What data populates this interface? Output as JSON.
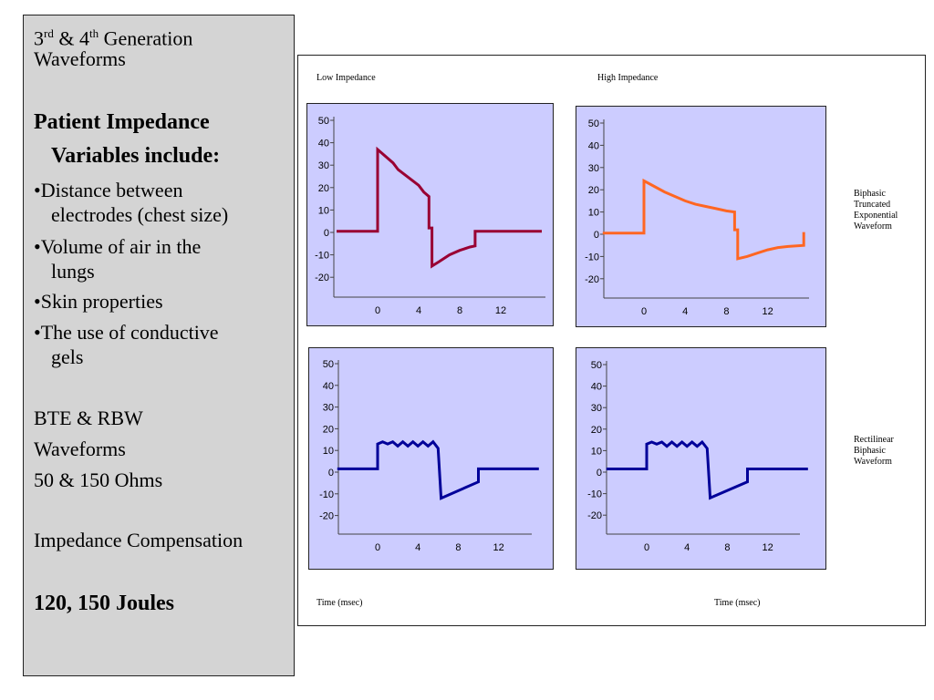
{
  "sidebar": {
    "title": {
      "l1_a": "3",
      "l1_sup1": "rd",
      "l1_b": " & 4",
      "l1_sup2": "th",
      "l1_c": " Generation",
      "l2": "Waveforms"
    },
    "heading": {
      "l1": "Patient Impedance",
      "l2": "Variables include:"
    },
    "bullets": [
      {
        "l1": "•Distance between",
        "l2": "electrodes (chest size)"
      },
      {
        "l1": "•Volume of air in the",
        "l2": "lungs"
      },
      {
        "l1": "•Skin properties",
        "l2": ""
      },
      {
        "l1": "•The use of conductive",
        "l2": "gels"
      }
    ],
    "bte": {
      "l1": "BTE & RBW",
      "l2": "Waveforms",
      "l3": "50 & 150 Ohms"
    },
    "compensation": "Impedance Compensation",
    "joules": "120, 150 Joules"
  },
  "figure": {
    "col_labels": [
      "Low Impedance",
      "High Impedance"
    ],
    "row_labels": [
      [
        "Biphasic",
        "Truncated",
        "Exponential",
        "Waveform"
      ],
      [
        "Rectilinear",
        "Biphasic",
        "Waveform"
      ]
    ],
    "xlabels": [
      "Time (msec)",
      "Time (msec)"
    ]
  },
  "colors": {
    "panel_bg": "#ccccff",
    "sidebar_bg": "#d4d4d4",
    "low_btew": "#990033",
    "high_btew": "#ff6622",
    "rbw": "#000099"
  },
  "chart_data": [
    {
      "type": "line",
      "name": "Low Impedance BTE",
      "yticks": [
        50,
        40,
        30,
        20,
        10,
        0,
        -10,
        -20
      ],
      "xticks": [
        0,
        4,
        8,
        12
      ],
      "ylim": [
        -20,
        50
      ],
      "series": [
        {
          "color": "#990033",
          "points": [
            [
              -4,
              0.5
            ],
            [
              0,
              0.5
            ],
            [
              0,
              37
            ],
            [
              1.5,
              31
            ],
            [
              2,
              28
            ],
            [
              4,
              21
            ],
            [
              4.5,
              18
            ],
            [
              5,
              16
            ],
            [
              5,
              2
            ],
            [
              5.3,
              2
            ],
            [
              5.3,
              -15
            ],
            [
              6,
              -13
            ],
            [
              7,
              -10
            ],
            [
              8,
              -8
            ],
            [
              9,
              -6.5
            ],
            [
              9.5,
              -6
            ],
            [
              9.5,
              0.5
            ],
            [
              16,
              0.5
            ]
          ]
        }
      ]
    },
    {
      "type": "line",
      "name": "High Impedance BTE",
      "yticks": [
        50,
        40,
        30,
        20,
        10,
        0,
        -10,
        -20
      ],
      "xticks": [
        0,
        4,
        8,
        12
      ],
      "ylim": [
        -20,
        50
      ],
      "series": [
        {
          "color": "#ff6622",
          "points": [
            [
              -4,
              0.5
            ],
            [
              0,
              0.5
            ],
            [
              0,
              24
            ],
            [
              1,
              21.5
            ],
            [
              2,
              19
            ],
            [
              3,
              17
            ],
            [
              4,
              15
            ],
            [
              5,
              13.5
            ],
            [
              6,
              12.5
            ],
            [
              7,
              11.5
            ],
            [
              8,
              10.5
            ],
            [
              8.8,
              10
            ],
            [
              8.8,
              2
            ],
            [
              9.1,
              2
            ],
            [
              9.1,
              -11
            ],
            [
              10,
              -10
            ],
            [
              11,
              -8.5
            ],
            [
              12,
              -7
            ],
            [
              13,
              -6
            ],
            [
              14,
              -5.5
            ],
            [
              15.5,
              -5
            ],
            [
              15.5,
              1
            ]
          ]
        }
      ]
    },
    {
      "type": "line",
      "name": "Low Impedance RBW",
      "yticks": [
        50,
        40,
        30,
        20,
        10,
        0,
        -10,
        -20
      ],
      "xticks": [
        0,
        4,
        8,
        12
      ],
      "ylim": [
        -20,
        50
      ],
      "series": [
        {
          "color": "#000099",
          "points": [
            [
              -4,
              1.5
            ],
            [
              0,
              1.5
            ],
            [
              0,
              13
            ],
            [
              0.5,
              14
            ],
            [
              1,
              13
            ],
            [
              1.5,
              14
            ],
            [
              2,
              12
            ],
            [
              2.5,
              14
            ],
            [
              3,
              12
            ],
            [
              3.5,
              14
            ],
            [
              4,
              12
            ],
            [
              4.5,
              14
            ],
            [
              5,
              12
            ],
            [
              5.5,
              14
            ],
            [
              6,
              11
            ],
            [
              6.3,
              -12
            ],
            [
              10,
              -4.5
            ],
            [
              10,
              1.5
            ],
            [
              16,
              1.5
            ]
          ]
        }
      ]
    },
    {
      "type": "line",
      "name": "High Impedance RBW",
      "yticks": [
        50,
        40,
        30,
        20,
        10,
        0,
        -10,
        -20
      ],
      "xticks": [
        0,
        4,
        8,
        12
      ],
      "ylim": [
        -20,
        50
      ],
      "series": [
        {
          "color": "#000099",
          "points": [
            [
              -4,
              1.5
            ],
            [
              0,
              1.5
            ],
            [
              0,
              13
            ],
            [
              0.5,
              14
            ],
            [
              1,
              13
            ],
            [
              1.5,
              14
            ],
            [
              2,
              12
            ],
            [
              2.5,
              14
            ],
            [
              3,
              12
            ],
            [
              3.5,
              14
            ],
            [
              4,
              12
            ],
            [
              4.5,
              14
            ],
            [
              5,
              12
            ],
            [
              5.5,
              14
            ],
            [
              6,
              11
            ],
            [
              6.3,
              -12
            ],
            [
              10,
              -4.5
            ],
            [
              10,
              1.5
            ],
            [
              16,
              1.5
            ]
          ]
        }
      ]
    }
  ]
}
